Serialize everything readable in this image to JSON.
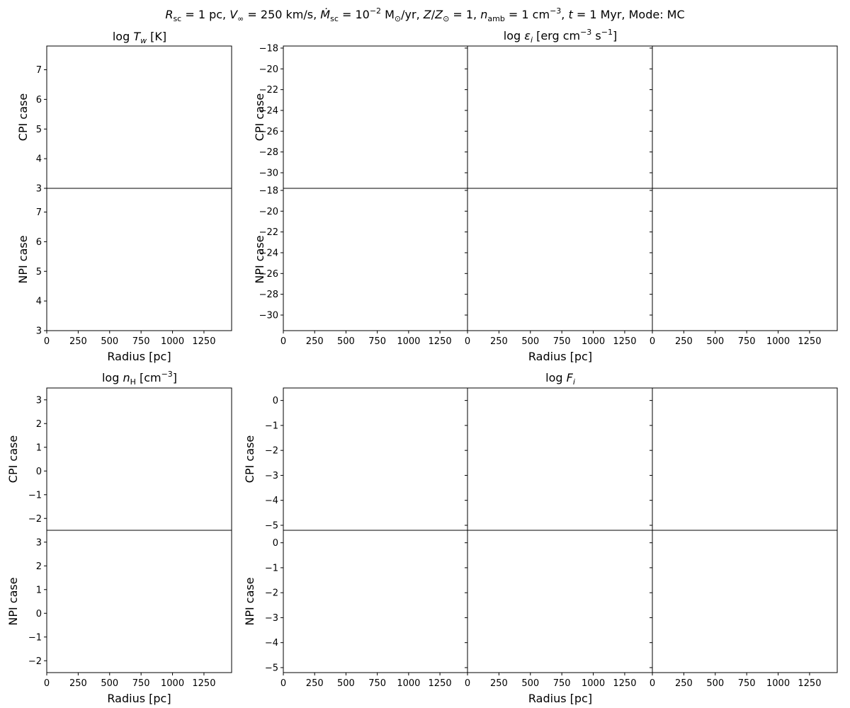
{
  "figure": {
    "suptitle": "R_sc = 1 pc, V_∞ = 250 km/s, Ṁ_sc = 10^−2 M_⊙/yr, Z/Z_⊙ = 1, n_amb = 1 cm^−3, t = 1 Myr, Mode: MC",
    "suptitle_parts": {
      "R": "R",
      "sc": "sc",
      "r_val": " = 1 pc, ",
      "V": "V",
      "inf": "∞",
      "v_val": " = 250 km/s, ",
      "M": "Ṁ",
      "msc": "sc",
      "m_val1": " = 10",
      "m_exp": "−2",
      "m_val2": " M",
      "sun": "⊙",
      "m_val3": "/yr, ",
      "Z": "Z",
      "slash": "/",
      "Z2": "Z",
      "zsun": "⊙",
      "z_val": " = 1, ",
      "n": "n",
      "amb": "amb",
      "n_val1": " = 1 cm",
      "n_exp": "−3",
      "n_val2": ", ",
      "t": "t",
      "t_val": " = 1 Myr, Mode: MC"
    }
  },
  "chart_data": [
    {
      "id": "Tw",
      "type": "line",
      "title": "log T_w [K]",
      "title_parts": {
        "pre": "log ",
        "sym": "T",
        "sub": "w",
        "post": " [K]"
      },
      "xlabel": "Radius [pc]",
      "xlim": [
        0,
        1470
      ],
      "xticks": [
        0,
        250,
        500,
        750,
        1000,
        1250
      ],
      "ylim": [
        3,
        7.8
      ],
      "yticks": [
        3,
        4,
        5,
        6,
        7
      ],
      "row_labels": [
        "CPI case",
        "NPI case"
      ],
      "series": []
    },
    {
      "id": "emissivity",
      "type": "line",
      "title": "log ε_i [erg cm^−3 s^−1]",
      "title_parts": {
        "pre": "log ",
        "sym": "ε",
        "sub": "i",
        "mid": " [erg cm",
        "exp1": "−3",
        "mid2": " s",
        "exp2": "−1",
        "post": "]"
      },
      "xlabel": "Radius [pc]",
      "xlim": [
        0,
        1470
      ],
      "xticks": [
        0,
        250,
        500,
        750,
        1000,
        1250
      ],
      "ylim": [
        -31.5,
        -17.8
      ],
      "yticks": [
        -30,
        -28,
        -26,
        -24,
        -22,
        -20,
        -18
      ],
      "row_labels": [
        "CPI case",
        "NPI case"
      ],
      "columns": 3,
      "series": []
    },
    {
      "id": "nH",
      "type": "line",
      "title": "log n_H [cm^−3]",
      "title_parts": {
        "pre": "log ",
        "sym": "n",
        "sub": "H",
        "mid": " [cm",
        "exp": "−3",
        "post": "]"
      },
      "xlabel": "Radius [pc]",
      "xlim": [
        0,
        1470
      ],
      "xticks": [
        0,
        250,
        500,
        750,
        1000,
        1250
      ],
      "ylim": [
        -2.5,
        3.5
      ],
      "yticks": [
        -2,
        -1,
        0,
        1,
        2,
        3
      ],
      "row_labels": [
        "CPI case",
        "NPI case"
      ],
      "series": []
    },
    {
      "id": "F",
      "type": "line",
      "title": "log F_i",
      "title_parts": {
        "pre": "log ",
        "sym": "F",
        "sub": "i"
      },
      "xlabel": "Radius [pc]",
      "xlim": [
        0,
        1470
      ],
      "xticks": [
        0,
        250,
        500,
        750,
        1000,
        1250
      ],
      "ylim": [
        -5.2,
        0.5
      ],
      "yticks": [
        -5,
        -4,
        -3,
        -2,
        -1,
        0
      ],
      "row_labels": [
        "CPI case",
        "NPI case"
      ],
      "columns": 3,
      "series": []
    }
  ]
}
